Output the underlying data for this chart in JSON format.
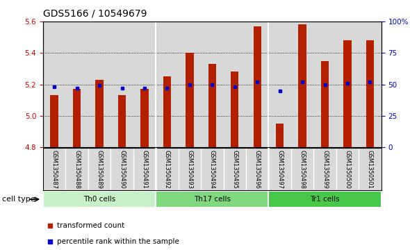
{
  "title": "GDS5166 / 10549679",
  "samples": [
    "GSM1350487",
    "GSM1350488",
    "GSM1350489",
    "GSM1350490",
    "GSM1350491",
    "GSM1350492",
    "GSM1350493",
    "GSM1350494",
    "GSM1350495",
    "GSM1350496",
    "GSM1350497",
    "GSM1350498",
    "GSM1350499",
    "GSM1350500",
    "GSM1350501"
  ],
  "bar_values": [
    5.13,
    5.17,
    5.23,
    5.13,
    5.17,
    5.25,
    5.4,
    5.33,
    5.28,
    5.57,
    4.95,
    5.58,
    5.35,
    5.48,
    5.48
  ],
  "percentile_values": [
    48,
    47,
    49,
    47,
    47,
    47,
    50,
    50,
    48,
    52,
    45,
    52,
    50,
    51,
    52
  ],
  "bar_bottom": 4.8,
  "ylim": [
    4.8,
    5.6
  ],
  "y2lim": [
    0,
    100
  ],
  "bar_color": "#B22000",
  "dot_color": "#0000CC",
  "bg_color": "#D8D8D8",
  "grid_color": "#000000",
  "cell_types": [
    {
      "label": "Th0 cells",
      "start": 0,
      "end": 5,
      "color": "#C8F0C8"
    },
    {
      "label": "Th17 cells",
      "start": 5,
      "end": 10,
      "color": "#80D880"
    },
    {
      "label": "Tr1 cells",
      "start": 10,
      "end": 15,
      "color": "#48C848"
    }
  ],
  "yticks": [
    4.8,
    5.0,
    5.2,
    5.4,
    5.6
  ],
  "y2ticks": [
    0,
    25,
    50,
    75,
    100
  ],
  "y2ticklabels": [
    "0",
    "25",
    "50",
    "75",
    "100%"
  ],
  "legend_items": [
    {
      "label": "transformed count",
      "color": "#B22000"
    },
    {
      "label": "percentile rank within the sample",
      "color": "#0000CC"
    }
  ],
  "cell_type_label": "cell type",
  "title_fontsize": 10,
  "tick_fontsize": 7.5,
  "label_fontsize": 7.0
}
